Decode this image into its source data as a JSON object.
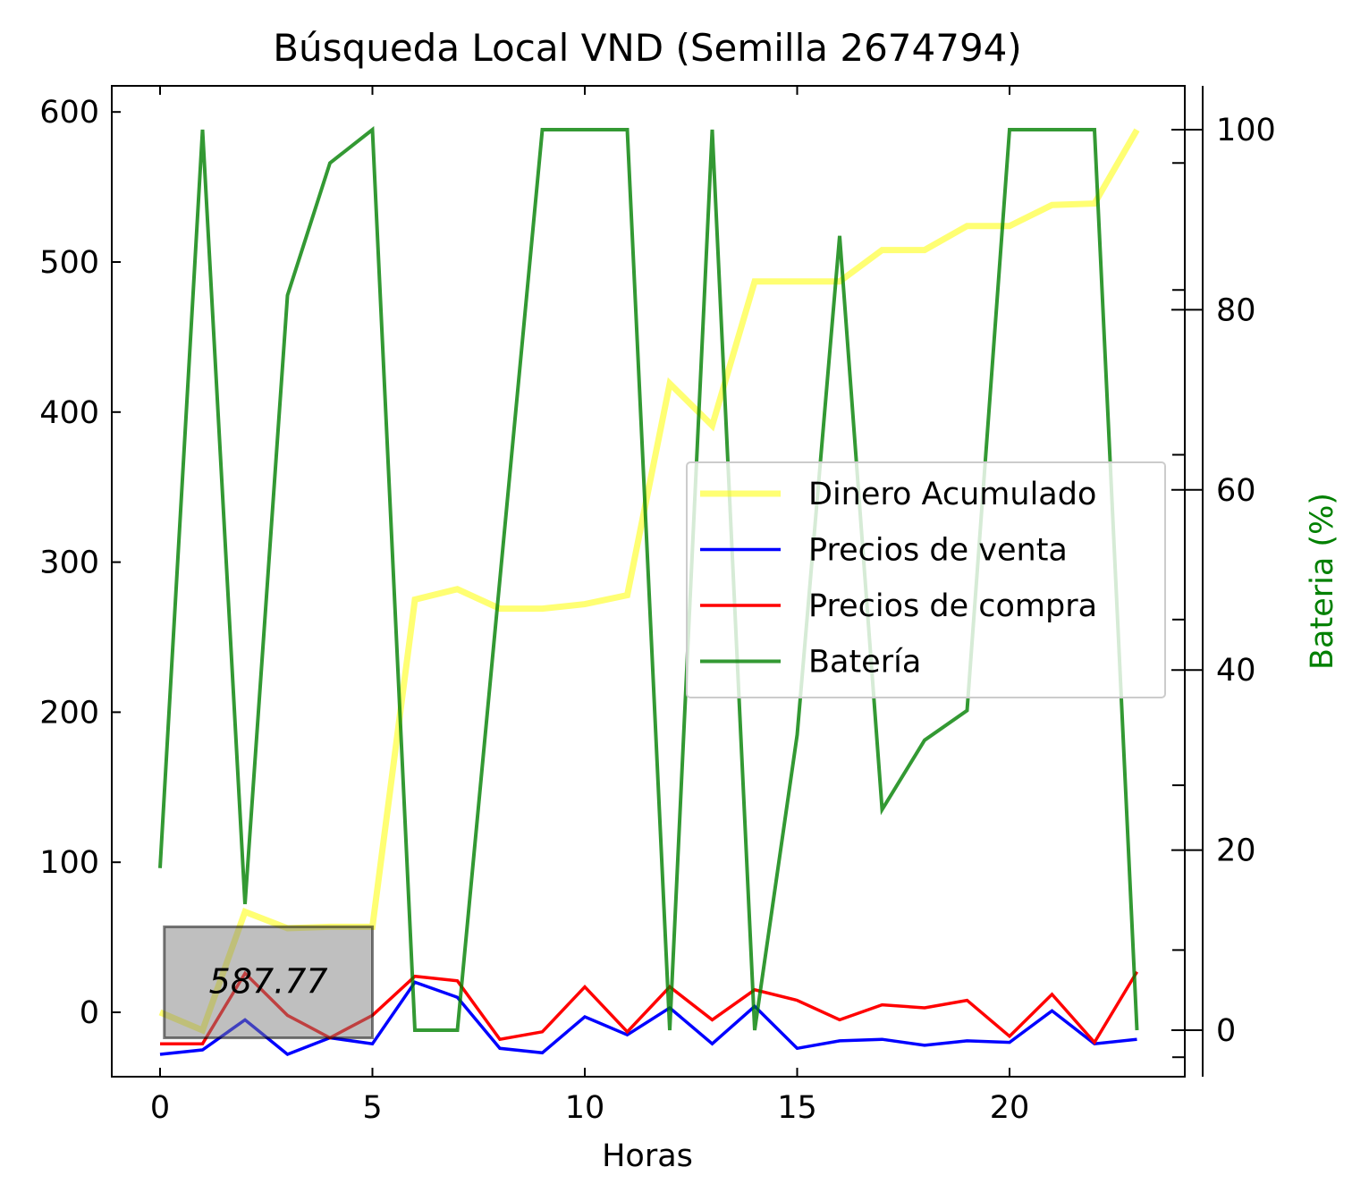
{
  "chart_data": {
    "type": "line",
    "title": "Búsqueda Local VND (Semilla 2674794)",
    "xlabel": "Horas",
    "ylabel": "",
    "ylabel_right": "Bateria (%)",
    "xlim": [
      -1.15,
      24.15
    ],
    "ylim": [
      -43,
      619
    ],
    "ylim_right": [
      -5,
      105
    ],
    "x_ticks": [
      0,
      5,
      10,
      15,
      20
    ],
    "y_ticks": [
      0,
      100,
      200,
      300,
      400,
      500,
      600
    ],
    "y_ticks_right": [
      0,
      20,
      40,
      60,
      80,
      100
    ],
    "y_minor_ticks_right": [
      -3,
      8.9,
      27.2,
      45.6,
      63.9,
      82.2,
      96.3
    ],
    "x": [
      0,
      1,
      2,
      3,
      4,
      5,
      6,
      7,
      8,
      9,
      10,
      11,
      12,
      13,
      14,
      15,
      16,
      17,
      18,
      19,
      20,
      21,
      22,
      23
    ],
    "series": [
      {
        "name": "Dinero Acumulado",
        "axis": "left",
        "color": "#ffff00",
        "values": [
          0,
          -12,
          67,
          56,
          57,
          57,
          275,
          282,
          269,
          269,
          272,
          278,
          419,
          391,
          487,
          487,
          487,
          508,
          508,
          524,
          524,
          538,
          539,
          588
        ]
      },
      {
        "name": "Precios de venta",
        "axis": "left",
        "color": "#0000ff",
        "values": [
          -28,
          -25,
          -5,
          -28,
          -17,
          -21,
          20,
          10,
          -24,
          -27,
          -3,
          -15,
          3,
          -21,
          4,
          -24,
          -19,
          -18,
          -22,
          -19,
          -20,
          1,
          -21,
          -18
        ]
      },
      {
        "name": "Precios de compra",
        "axis": "left",
        "color": "#ff0000",
        "values": [
          -21,
          -21,
          26,
          -2,
          -17,
          -2,
          24,
          21,
          -18,
          -13,
          17,
          -13,
          17,
          -5,
          15,
          8,
          -5,
          5,
          3,
          8,
          -16,
          12,
          -20,
          27
        ]
      },
      {
        "name": "Batería",
        "axis": "right",
        "color": "#008000",
        "values": [
          18,
          100,
          14,
          81.6,
          96.3,
          100,
          0,
          0,
          50,
          100,
          100,
          100,
          0,
          100,
          0,
          32.8,
          88.2,
          24.5,
          32.2,
          35.5,
          100,
          100,
          100,
          0
        ]
      }
    ],
    "legend": [
      "Dinero Acumulado",
      "Precios de venta",
      "Precios de compra",
      "Batería"
    ],
    "legend_placement": "center-right",
    "annotation": {
      "text": "587.77",
      "x_from": 0.1,
      "x_to": 5,
      "y_from": -17,
      "y_to": 57
    },
    "grid": false
  }
}
